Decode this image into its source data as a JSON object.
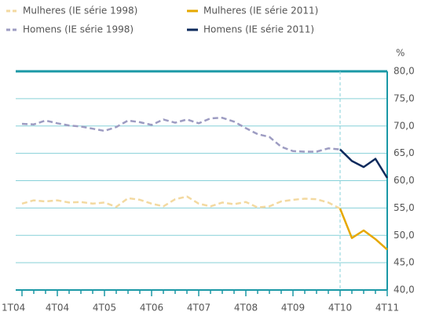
{
  "chart_data": {
    "type": "line",
    "y_unit": "%",
    "categories": [
      "1T04",
      null,
      null,
      "4T04",
      null,
      null,
      null,
      "4T05",
      null,
      null,
      null,
      "4T06",
      null,
      null,
      null,
      "4T07",
      null,
      null,
      null,
      "4T08",
      null,
      null,
      null,
      "4T09",
      null,
      null,
      null,
      "4T10",
      null,
      null,
      null,
      "4T11"
    ],
    "series": [
      {
        "name": "Mulheres (IE série 1998)",
        "color": "#f3d9a0",
        "dash": true,
        "values": [
          55.8,
          56.4,
          56.2,
          56.4,
          56.0,
          56.1,
          55.8,
          56.0,
          55.2,
          56.8,
          56.5,
          55.8,
          55.3,
          56.6,
          57.1,
          55.8,
          55.3,
          56.0,
          55.7,
          56.1,
          55.1,
          55.3,
          56.2,
          56.5,
          56.7,
          56.6,
          56.0,
          54.9,
          null,
          null,
          null,
          null
        ]
      },
      {
        "name": "Mulheres (IE série 2011)",
        "color": "#e6a800",
        "dash": false,
        "values": [
          null,
          null,
          null,
          null,
          null,
          null,
          null,
          null,
          null,
          null,
          null,
          null,
          null,
          null,
          null,
          null,
          null,
          null,
          null,
          null,
          null,
          null,
          null,
          null,
          null,
          null,
          null,
          54.9,
          49.5,
          50.9,
          49.3,
          47.4
        ]
      },
      {
        "name": "Homens (IE série 1998)",
        "color": "#9d9cc2",
        "dash": true,
        "values": [
          70.4,
          70.3,
          71.0,
          70.5,
          70.1,
          69.9,
          69.5,
          69.1,
          69.8,
          71.0,
          70.7,
          70.2,
          71.2,
          70.6,
          71.2,
          70.5,
          71.4,
          71.5,
          70.8,
          69.6,
          68.5,
          68.0,
          66.2,
          65.4,
          65.3,
          65.3,
          65.9,
          65.7,
          null,
          null,
          null,
          null
        ]
      },
      {
        "name": "Homens (IE série 2011)",
        "color": "#0d2a5c",
        "dash": false,
        "values": [
          null,
          null,
          null,
          null,
          null,
          null,
          null,
          null,
          null,
          null,
          null,
          null,
          null,
          null,
          null,
          null,
          null,
          null,
          null,
          null,
          null,
          null,
          null,
          null,
          null,
          null,
          null,
          65.7,
          63.6,
          62.5,
          64.0,
          60.5
        ]
      }
    ],
    "ylim": [
      40,
      80
    ],
    "yticks": [
      {
        "value": 40,
        "label": "40,0"
      },
      {
        "value": 45,
        "label": "45,0"
      },
      {
        "value": 50,
        "label": "50,0"
      },
      {
        "value": 55,
        "label": "55,0"
      },
      {
        "value": 60,
        "label": "60,0"
      },
      {
        "value": 65,
        "label": "65,0"
      },
      {
        "value": 70,
        "label": "70,0"
      },
      {
        "value": 75,
        "label": "75,0"
      },
      {
        "value": 80,
        "label": "80,0"
      }
    ],
    "grid": true
  }
}
